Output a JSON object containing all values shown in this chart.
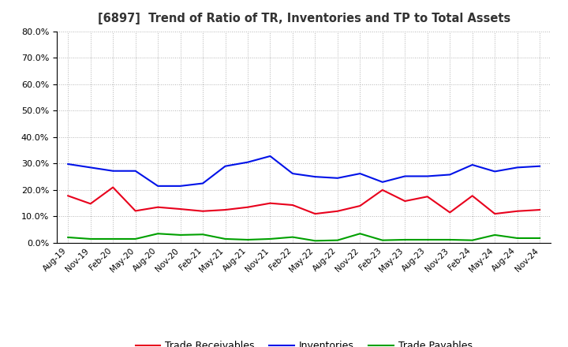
{
  "title": "[6897]  Trend of Ratio of TR, Inventories and TP to Total Assets",
  "x_labels": [
    "Aug-19",
    "Nov-19",
    "Feb-20",
    "May-20",
    "Aug-20",
    "Nov-20",
    "Feb-21",
    "May-21",
    "Aug-21",
    "Nov-21",
    "Feb-22",
    "May-22",
    "Aug-22",
    "Nov-22",
    "Feb-23",
    "May-23",
    "Aug-23",
    "Nov-23",
    "Feb-24",
    "May-24",
    "Aug-24",
    "Nov-24"
  ],
  "trade_receivables": [
    0.178,
    0.148,
    0.21,
    0.121,
    0.135,
    0.128,
    0.12,
    0.125,
    0.135,
    0.15,
    0.143,
    0.11,
    0.12,
    0.14,
    0.2,
    0.158,
    0.175,
    0.115,
    0.178,
    0.11,
    0.12,
    0.125
  ],
  "inventories": [
    0.298,
    0.285,
    0.272,
    0.272,
    0.215,
    0.215,
    0.225,
    0.29,
    0.305,
    0.328,
    0.262,
    0.25,
    0.245,
    0.262,
    0.23,
    0.252,
    0.252,
    0.258,
    0.295,
    0.27,
    0.285,
    0.29
  ],
  "trade_payables": [
    0.021,
    0.015,
    0.015,
    0.015,
    0.035,
    0.03,
    0.032,
    0.015,
    0.012,
    0.015,
    0.022,
    0.008,
    0.01,
    0.035,
    0.01,
    0.012,
    0.012,
    0.012,
    0.01,
    0.03,
    0.018,
    0.018
  ],
  "tr_color": "#e8001c",
  "inv_color": "#0012e8",
  "tp_color": "#00a000",
  "ylim": [
    0.0,
    0.8
  ],
  "yticks": [
    0.0,
    0.1,
    0.2,
    0.3,
    0.4,
    0.5,
    0.6,
    0.7,
    0.8
  ],
  "bg_color": "#ffffff",
  "grid_color": "#aaaaaa",
  "legend_labels": [
    "Trade Receivables",
    "Inventories",
    "Trade Payables"
  ]
}
